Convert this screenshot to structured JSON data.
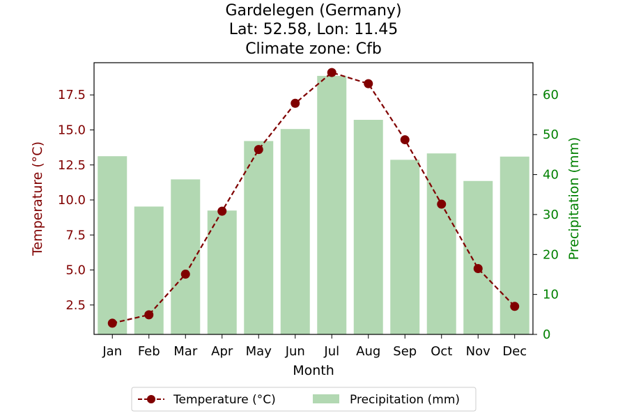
{
  "chart_data": {
    "type": "bar+line",
    "title_lines": [
      "Gardelegen (Germany)",
      "Lat: 52.58, Lon: 11.45",
      "Climate zone: Cfb"
    ],
    "xlabel": "Month",
    "ylabel_left": "Temperature (°C)",
    "ylabel_right": "Precipitation (mm)",
    "categories": [
      "Jan",
      "Feb",
      "Mar",
      "Apr",
      "May",
      "Jun",
      "Jul",
      "Aug",
      "Sep",
      "Oct",
      "Nov",
      "Dec"
    ],
    "temperature": {
      "name": "Temperature (°C)",
      "values": [
        1.2,
        1.8,
        4.7,
        9.2,
        13.6,
        16.9,
        19.1,
        18.3,
        14.3,
        9.7,
        5.1,
        2.4
      ],
      "color": "#800000",
      "ylim": [
        0.4,
        19.8
      ],
      "yticks": [
        2.5,
        5.0,
        7.5,
        10.0,
        12.5,
        15.0,
        17.5
      ],
      "ytick_labels": [
        "2.5",
        "5.0",
        "7.5",
        "10.0",
        "12.5",
        "15.0",
        "17.5"
      ]
    },
    "precipitation": {
      "name": "Precipitation (mm)",
      "values": [
        44.6,
        32.0,
        38.8,
        31.0,
        48.4,
        51.4,
        64.7,
        53.7,
        43.7,
        45.3,
        38.4,
        44.5
      ],
      "color": "#008000",
      "bar_color": "#b2d8b2",
      "ylim": [
        0,
        68
      ],
      "yticks": [
        0,
        10,
        20,
        30,
        40,
        50,
        60
      ],
      "ytick_labels": [
        "0",
        "10",
        "20",
        "30",
        "40",
        "50",
        "60"
      ]
    },
    "legend": {
      "placement": "bottom-center",
      "entries": [
        "Temperature (°C)",
        "Precipitation (mm)"
      ]
    },
    "grid": false
  }
}
